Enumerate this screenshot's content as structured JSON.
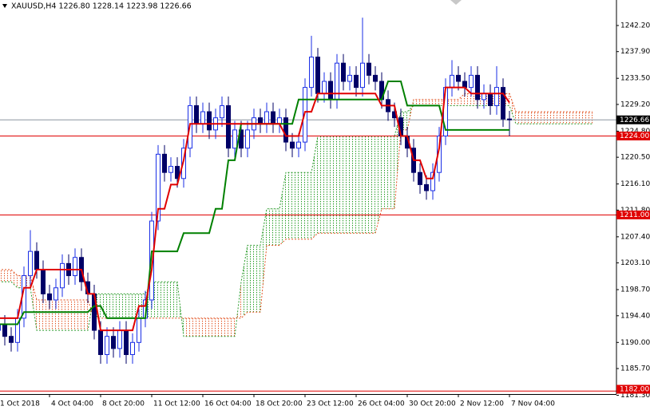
{
  "chart_data": {
    "type": "candlestick",
    "title": "XAUUSD,H4  1226.80 1228.14 1223.98 1226.66",
    "categories": [
      "1 Oct 2018",
      null,
      null,
      null,
      null,
      null,
      null,
      null,
      "4 Oct 04:00",
      null,
      null,
      null,
      null,
      null,
      null,
      null,
      "8 Oct 20:00",
      null,
      null,
      null,
      null,
      null,
      null,
      null,
      "11 Oct 12:00",
      null,
      null,
      null,
      null,
      null,
      null,
      null,
      "16 Oct 04:00",
      null,
      null,
      null,
      null,
      null,
      null,
      null,
      "18 Oct 20:00",
      null,
      null,
      null,
      null,
      null,
      null,
      null,
      "23 Oct 12:00",
      null,
      null,
      null,
      null,
      null,
      null,
      null,
      "26 Oct 04:00",
      null,
      null,
      null,
      null,
      null,
      null,
      null,
      "30 Oct 20:00",
      null,
      null,
      null,
      null,
      null,
      null,
      null,
      "2 Nov 12:00",
      null,
      null,
      null,
      null,
      null,
      null,
      null,
      "7 Nov 04:00",
      null,
      null,
      null,
      null,
      null,
      null,
      null,
      null,
      null,
      null,
      null,
      null,
      null
    ],
    "candles": {
      "up_color": "#1a2ee6",
      "down_color": "#000066",
      "open": [
        1192,
        1193,
        1191,
        1190,
        1194,
        1201,
        1205,
        1202,
        1198,
        1197,
        1199,
        1203,
        1201,
        1204,
        1200,
        1198,
        1192,
        1188,
        1191,
        1189,
        1192,
        1188,
        1190,
        1194,
        1197,
        1210,
        1221,
        1218,
        1219,
        1217,
        1222,
        1229,
        1226,
        1228,
        1225,
        1227,
        1229,
        1222,
        1225,
        1222,
        1225,
        1227,
        1226,
        1228,
        1226,
        1227,
        1223,
        1222,
        1223,
        1232,
        1237,
        1231,
        1233,
        1230,
        1236,
        1233,
        1234,
        1232,
        1236,
        1234,
        1233,
        1230,
        1228,
        1227,
        1224,
        1222,
        1218,
        1216,
        1215,
        1218,
        1224,
        1232,
        1234,
        1233,
        1232,
        1234,
        1230,
        1231,
        1229,
        1232,
        1226.8,
        null,
        null,
        null,
        null,
        null,
        null,
        null,
        null,
        null,
        null,
        null,
        null,
        null
      ],
      "high": [
        1194.5,
        1194.5,
        1192.5,
        1195.5,
        1202.5,
        1208.5,
        1206.5,
        1203.5,
        1199.5,
        1200.5,
        1204.5,
        1204.5,
        1205.5,
        1205.5,
        1201.5,
        1199.5,
        1193.5,
        1192.5,
        1192.5,
        1193.5,
        1193.5,
        1191.5,
        1195.5,
        1198.5,
        1211.5,
        1222.5,
        1222.5,
        1220.5,
        1220.5,
        1223.5,
        1230.5,
        1230.5,
        1229.5,
        1229.5,
        1228.5,
        1230.5,
        1230.5,
        1226.5,
        1226.5,
        1226.5,
        1228.5,
        1228.5,
        1229.5,
        1229.5,
        1228.5,
        1228.5,
        1224.5,
        1224.5,
        1233.5,
        1240.5,
        1238.5,
        1234.5,
        1234.5,
        1237.5,
        1237.5,
        1235.5,
        1235.5,
        1243.5,
        1237.5,
        1235.5,
        1234.5,
        1231.5,
        1229.5,
        1228.5,
        1225.5,
        1223.5,
        1219.5,
        1217.5,
        1219.5,
        1225.5,
        1233.5,
        1236.5,
        1235.5,
        1234.5,
        1235.5,
        1235.5,
        1232.5,
        1232.5,
        1235.5,
        1233.5,
        1228.14,
        null,
        null,
        null,
        null,
        null,
        null,
        null,
        null,
        null,
        null,
        null,
        null,
        null
      ],
      "low": [
        1190.5,
        1189.5,
        1188.5,
        1188.5,
        1192.5,
        1199.5,
        1200.5,
        1196.5,
        1195.5,
        1195.5,
        1197.5,
        1199.5,
        1199.5,
        1198.5,
        1196.5,
        1190.5,
        1186.5,
        1186.5,
        1187.5,
        1187.5,
        1186.5,
        1186.5,
        1188.5,
        1192.5,
        1195.5,
        1208.5,
        1216.5,
        1216.5,
        1215.5,
        1215.5,
        1220.5,
        1224.5,
        1224.5,
        1223.5,
        1223.5,
        1225.5,
        1220.5,
        1220.5,
        1220.5,
        1220.5,
        1223.5,
        1224.5,
        1224.5,
        1224.5,
        1224.5,
        1221.5,
        1220.5,
        1220.5,
        1221.5,
        1230.5,
        1229.5,
        1229.5,
        1228.5,
        1228.5,
        1231.5,
        1231.5,
        1230.5,
        1230.5,
        1232.5,
        1231.5,
        1228.5,
        1226.5,
        1225.5,
        1222.5,
        1220.5,
        1216.5,
        1214.5,
        1213.5,
        1213.5,
        1216.5,
        1222.5,
        1230.5,
        1231.5,
        1230.5,
        1230.5,
        1228.5,
        1228.5,
        1227.5,
        1227.5,
        1225.5,
        1223.98,
        null,
        null,
        null,
        null,
        null,
        null,
        null,
        null,
        null,
        null,
        null,
        null,
        null
      ],
      "close": [
        1193,
        1191,
        1190,
        1194,
        1201,
        1205,
        1202,
        1198,
        1197,
        1199,
        1203,
        1201,
        1204,
        1200,
        1198,
        1192,
        1188,
        1191,
        1189,
        1192,
        1188,
        1190,
        1194,
        1197,
        1210,
        1221,
        1218,
        1219,
        1217,
        1222,
        1229,
        1226,
        1228,
        1225,
        1227,
        1229,
        1222,
        1225,
        1222,
        1225,
        1227,
        1226,
        1228,
        1226,
        1227,
        1223,
        1222,
        1223,
        1232,
        1237,
        1231,
        1233,
        1230,
        1236,
        1233,
        1234,
        1232,
        1236,
        1234,
        1233,
        1230,
        1228,
        1227,
        1224,
        1222,
        1218,
        1216,
        1215,
        1218,
        1224,
        1232,
        1234,
        1233,
        1232,
        1234,
        1230,
        1231,
        1229,
        1232,
        1226.8,
        1226.66,
        null,
        null,
        null,
        null,
        null,
        null,
        null,
        null,
        null,
        null,
        null,
        null,
        null
      ]
    },
    "tenkan": {
      "color": "#e00000",
      "values": [
        1194,
        1194,
        1194,
        1194,
        1199,
        1199,
        1202,
        1202,
        1202,
        1202,
        1202,
        1202,
        1202,
        1202,
        1198,
        1198,
        1192,
        1192,
        1192,
        1192,
        1192,
        1192,
        1196,
        1196,
        1202,
        1212,
        1212,
        1216,
        1216,
        1220,
        1226,
        1226,
        1226,
        1226,
        1226,
        1226,
        1226,
        1226,
        1226,
        1226,
        1226,
        1226,
        1226,
        1226,
        1226,
        1224,
        1224,
        1224,
        1228,
        1228,
        1231,
        1231,
        1231,
        1231,
        1231,
        1231,
        1231,
        1231,
        1231,
        1231,
        1229,
        1229,
        1229,
        1224,
        1224,
        1220,
        1220,
        1217,
        1217,
        1222,
        1232,
        1232,
        1232,
        1232,
        1231,
        1231,
        1231,
        1231,
        1231,
        1231,
        1229.5,
        null,
        null,
        null,
        null,
        null,
        null,
        null,
        null,
        null,
        null,
        null,
        null,
        null
      ]
    },
    "kijun": {
      "color": "#008000",
      "values": [
        1193,
        1193,
        1193,
        1193,
        1195,
        1195,
        1195,
        1195,
        1195,
        1195,
        1195,
        1195,
        1195,
        1195,
        1195,
        1196,
        1196,
        1194,
        1194,
        1194,
        1194,
        1194,
        1194,
        1194,
        1205,
        1205,
        1205,
        1205,
        1205,
        1208,
        1208,
        1208,
        1208,
        1208,
        1212,
        1212,
        1220,
        1220,
        1226,
        1226,
        1226,
        1226,
        1226,
        1226,
        1226,
        1226,
        1226,
        1230,
        1230,
        1230,
        1230,
        1230,
        1230,
        1230,
        1230,
        1230,
        1230,
        1230,
        1230,
        1230,
        1230,
        1233,
        1233,
        1233,
        1229,
        1229,
        1229,
        1229,
        1229,
        1229,
        1225,
        1225,
        1225,
        1225,
        1225,
        1225,
        1225,
        1225,
        1225,
        1225,
        1225,
        null,
        null,
        null,
        null,
        null,
        null,
        null,
        null,
        null,
        null,
        null,
        null,
        null
      ]
    },
    "span_a": {
      "color": "#2a9a2a",
      "values": [
        1200,
        1200,
        1200,
        1199,
        1199,
        1199,
        1192,
        1192,
        1192,
        1192,
        1192,
        1192,
        1192,
        1192,
        1192,
        1198,
        1198,
        1198,
        1198,
        1198,
        1198,
        1198,
        1198,
        1198,
        1200,
        1200,
        1200,
        1200,
        1200,
        1191,
        1191,
        1191,
        1191,
        1191,
        1191,
        1191,
        1191,
        1191,
        1200,
        1206,
        1206,
        1206,
        1212,
        1212,
        1212,
        1218,
        1218,
        1218,
        1218,
        1218,
        1224,
        1224,
        1224,
        1224,
        1224,
        1224,
        1224,
        1224,
        1224,
        1224,
        1224,
        1224,
        1224,
        1228,
        1228,
        1229,
        1229,
        1229,
        1229,
        1229,
        1229,
        1229,
        1229,
        1229,
        1229,
        1229,
        1229,
        1229,
        1229,
        1229,
        1229,
        1226,
        1226,
        1226,
        1226,
        1226,
        1226,
        1226,
        1226,
        1226,
        1226,
        1226,
        1226,
        1226
      ]
    },
    "span_b": {
      "color": "#e2501e",
      "values": [
        1202,
        1202,
        1202,
        1201,
        1201,
        1201,
        1197,
        1197,
        1197,
        1197,
        1197,
        1197,
        1197,
        1197,
        1197,
        1194,
        1194,
        1194,
        1194,
        1194,
        1194,
        1194,
        1194,
        1194,
        1194,
        1194,
        1194,
        1194,
        1194,
        1194,
        1194,
        1194,
        1194,
        1194,
        1194,
        1194,
        1194,
        1194,
        1194,
        1195,
        1195,
        1195,
        1206,
        1206,
        1206,
        1207,
        1207,
        1207,
        1207,
        1207,
        1208,
        1208,
        1208,
        1208,
        1208,
        1208,
        1208,
        1208,
        1208,
        1208,
        1212,
        1212,
        1212,
        1225,
        1225,
        1230,
        1230,
        1230,
        1230,
        1230,
        1230,
        1230,
        1230,
        1231,
        1231,
        1231,
        1231,
        1231,
        1231,
        1231,
        1231,
        1228,
        1228,
        1228,
        1228,
        1228,
        1228,
        1228,
        1228,
        1228,
        1228,
        1228,
        1228,
        1228
      ]
    },
    "ylim": [
      1181.5,
      1246.4
    ],
    "yticks": [
      {
        "value": 1242.2,
        "label": "1242.20"
      },
      {
        "value": 1237.9,
        "label": "1237.90"
      },
      {
        "value": 1233.5,
        "label": "1233.50"
      },
      {
        "value": 1229.2,
        "label": "1229.20"
      },
      {
        "value": 1224.8,
        "label": "1224.80"
      },
      {
        "value": 1220.5,
        "label": "1220.50"
      },
      {
        "value": 1216.1,
        "label": "1216.10"
      },
      {
        "value": 1211.8,
        "label": "1211.80"
      },
      {
        "value": 1207.4,
        "label": "1207.40"
      },
      {
        "value": 1203.1,
        "label": "1203.10"
      },
      {
        "value": 1198.7,
        "label": "1198.70"
      },
      {
        "value": 1194.4,
        "label": "1194.40"
      },
      {
        "value": 1190.0,
        "label": "1190.00"
      },
      {
        "value": 1185.7,
        "label": "1185.70"
      },
      {
        "value": 1181.3,
        "label": "1181.30"
      }
    ],
    "grid": false,
    "levels": [
      {
        "value": 1226.66,
        "label": "1226.66",
        "color": "#8c96a0",
        "tag_color": "#000000"
      },
      {
        "value": 1224,
        "label": "1224.00",
        "color": "#e00000",
        "tag_color": "#e00000"
      },
      {
        "value": 1211,
        "label": "1211.00",
        "color": "#e00000",
        "tag_color": "#e00000"
      },
      {
        "value": 1182,
        "label": "1182.00",
        "color": "#e00000",
        "tag_color": "#e00000"
      }
    ]
  }
}
